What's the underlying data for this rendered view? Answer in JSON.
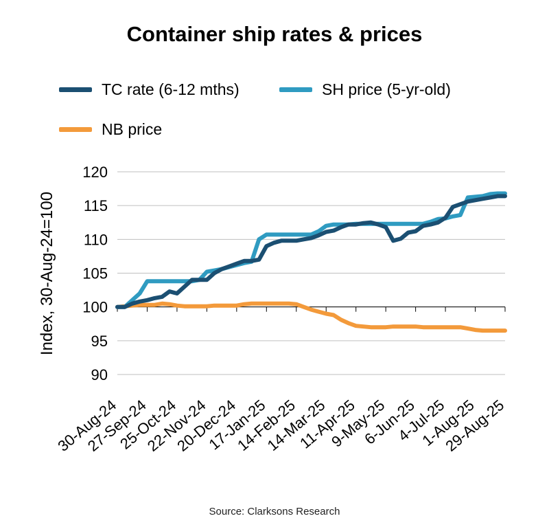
{
  "chart_data": {
    "type": "line",
    "title": "Container ship rates & prices",
    "ylabel": "Index, 30-Aug-24=100",
    "xlabel": "",
    "ylim": [
      90,
      120
    ],
    "yticks": [
      90,
      95,
      100,
      105,
      110,
      115,
      120
    ],
    "xtick_labels": [
      "30-Aug-24",
      "27-Sep-24",
      "25-Oct-24",
      "22-Nov-24",
      "20-Dec-24",
      "17-Jan-25",
      "14-Feb-25",
      "14-Mar-25",
      "11-Apr-25",
      "9-May-25",
      "6-Jun-25",
      "4-Jul-25",
      "1-Aug-25",
      "29-Aug-25"
    ],
    "n_weeks": 53,
    "legend_position": "top",
    "series": [
      {
        "name": "TC rate (6-12 mths)",
        "color": "#1b4f72",
        "values": [
          100,
          100,
          100.5,
          100.8,
          101,
          101.3,
          101.5,
          102.3,
          102,
          103,
          104,
          104,
          104,
          105,
          105.6,
          106,
          106.4,
          106.8,
          106.8,
          107,
          109,
          109.5,
          109.8,
          109.8,
          109.8,
          110,
          110.2,
          110.6,
          111.1,
          111.3,
          111.8,
          112.2,
          112.2,
          112.4,
          112.5,
          112.2,
          111.8,
          109.8,
          110.1,
          111,
          111.2,
          112,
          112.2,
          112.5,
          113.2,
          114.8,
          115.2,
          115.6,
          115.8,
          116,
          116.2,
          116.4,
          116.4
        ]
      },
      {
        "name": "SH price (5-yr-old)",
        "color": "#2f9bc1",
        "values": [
          100,
          100,
          101,
          102,
          103.8,
          103.8,
          103.8,
          103.8,
          103.8,
          103.8,
          103.8,
          104,
          105.2,
          105.4,
          105.6,
          105.9,
          106.2,
          106.5,
          106.7,
          110,
          110.7,
          110.7,
          110.7,
          110.7,
          110.7,
          110.7,
          110.7,
          111.2,
          112,
          112.2,
          112.2,
          112.2,
          112.3,
          112.3,
          112.3,
          112.3,
          112.3,
          112.3,
          112.3,
          112.3,
          112.3,
          112.3,
          112.6,
          113,
          113.1,
          113.4,
          113.6,
          116.2,
          116.3,
          116.4,
          116.7,
          116.8,
          116.8
        ]
      },
      {
        "name": "NB price",
        "color": "#f39a3b",
        "values": [
          100,
          100.1,
          100.2,
          100.3,
          100.3,
          100.3,
          100.5,
          100.4,
          100.2,
          100.1,
          100.1,
          100.1,
          100.1,
          100.2,
          100.2,
          100.2,
          100.2,
          100.4,
          100.5,
          100.5,
          100.5,
          100.5,
          100.5,
          100.5,
          100.4,
          100,
          99.6,
          99.3,
          99,
          98.8,
          98.1,
          97.6,
          97.2,
          97.1,
          97,
          97,
          97,
          97.1,
          97.1,
          97.1,
          97.1,
          97,
          97,
          97,
          97,
          97,
          97,
          96.8,
          96.6,
          96.5,
          96.5,
          96.5,
          96.5
        ]
      }
    ]
  },
  "source": "Source: Clarksons Research"
}
